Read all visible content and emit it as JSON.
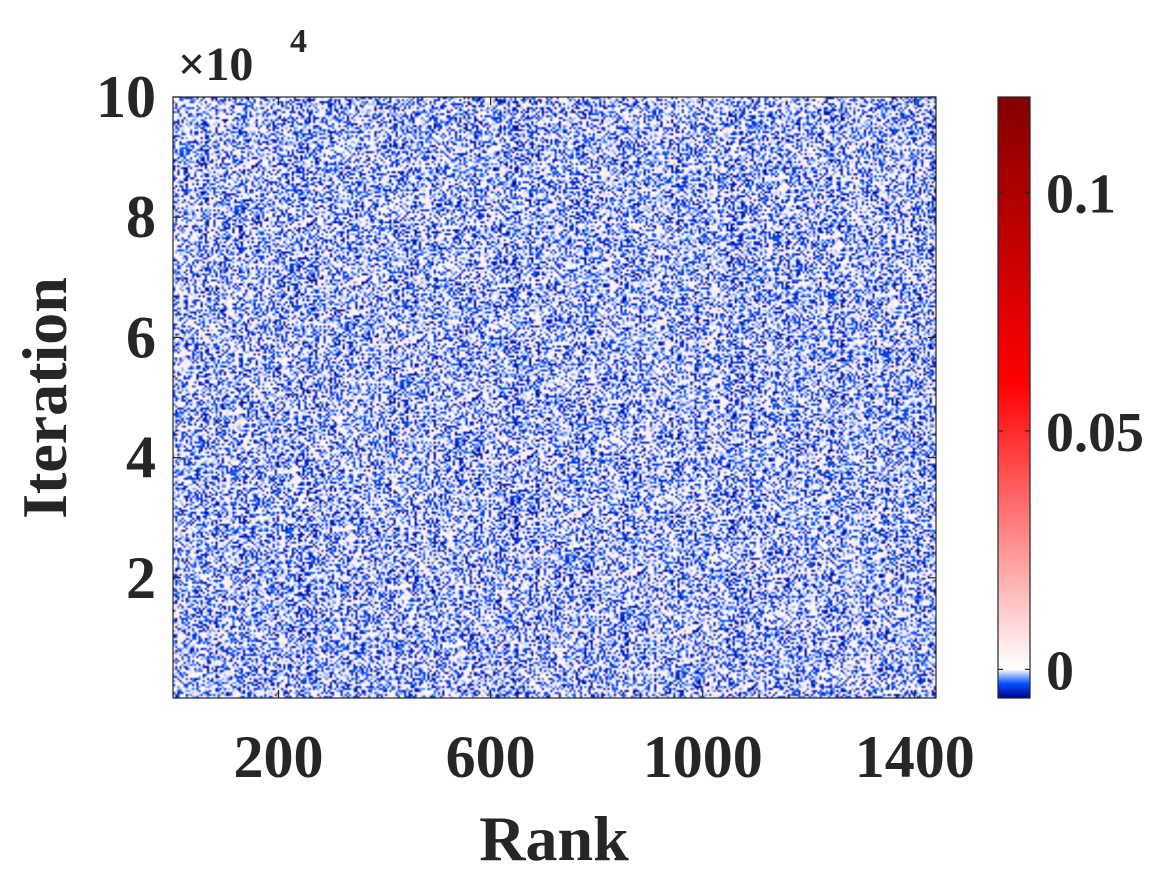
{
  "chart_data": {
    "type": "heatmap",
    "title": "",
    "xlabel": "Rank",
    "ylabel": "Iteration",
    "xlim": [
      1,
      1440
    ],
    "ylim": [
      0,
      100000
    ],
    "y_exponent_label": "×10",
    "y_exponent_power": "4",
    "xticks": [
      200,
      600,
      1000,
      1400
    ],
    "xtick_labels": [
      "200",
      "600",
      "1000",
      "1400"
    ],
    "yticks": [
      20000,
      40000,
      60000,
      80000,
      100000
    ],
    "ytick_labels": [
      "2",
      "4",
      "6",
      "8",
      "10"
    ],
    "colorbar": {
      "range": [
        -0.006,
        0.12
      ],
      "ticks": [
        0,
        0.05,
        0.1
      ],
      "tick_labels": [
        "0",
        "0.05",
        "0.1"
      ],
      "colormap": [
        {
          "value": -0.006,
          "color": "#00008a"
        },
        {
          "value": -0.003,
          "color": "#0050ff"
        },
        {
          "value": 0,
          "color": "#ffffff"
        },
        {
          "value": 0.06,
          "color": "#ff0000"
        },
        {
          "value": 0.12,
          "color": "#840000"
        }
      ]
    },
    "data_description_note_excluded": true,
    "cell_value_range": [
      -0.006,
      0.006
    ],
    "grid": false
  },
  "colors": {
    "text": "#262626",
    "axis": "#262626",
    "background": "#ffffff"
  }
}
